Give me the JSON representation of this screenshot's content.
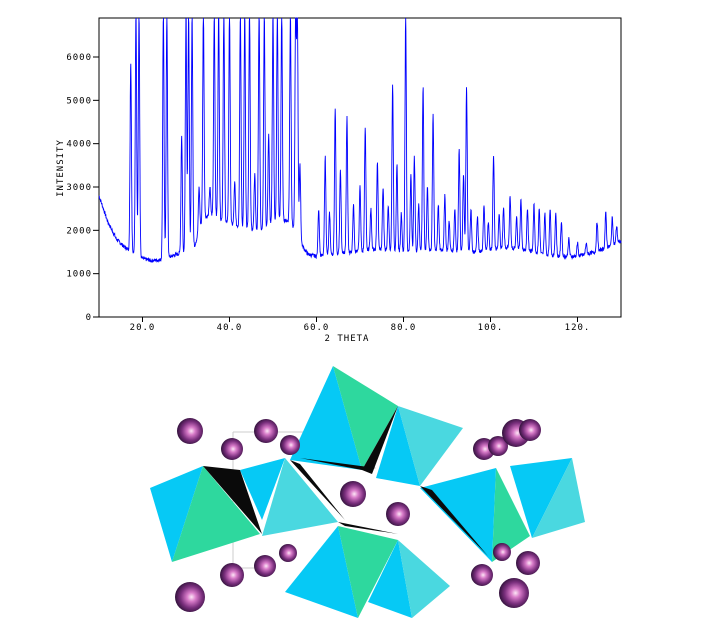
{
  "chart_data": {
    "type": "line",
    "xlabel": "2 THETA",
    "ylabel": "INTENSITY",
    "xlim": [
      10,
      130
    ],
    "ylim": [
      0,
      6900
    ],
    "x_ticks": [
      20,
      40,
      60,
      80,
      100,
      120
    ],
    "x_tick_labels": [
      "20.0",
      "40.0",
      "60.0",
      "80.0",
      "100.",
      "120."
    ],
    "y_ticks": [
      0,
      1000,
      2000,
      3000,
      4000,
      5000,
      6000
    ],
    "y_tick_labels": [
      "0",
      "1000",
      "2000",
      "3000",
      "4000",
      "5000",
      "6000"
    ],
    "line_color": "#0000ff",
    "series": [
      {
        "background": [
          [
            10,
            2800
          ],
          [
            12,
            2200
          ],
          [
            14,
            1800
          ],
          [
            16,
            1600
          ],
          [
            18,
            1500
          ],
          [
            20,
            1350
          ],
          [
            22,
            1300
          ],
          [
            24,
            1320
          ],
          [
            26,
            1380
          ],
          [
            28,
            1450
          ],
          [
            30,
            1500
          ],
          [
            32,
            1650
          ],
          [
            34,
            2300
          ],
          [
            36,
            2350
          ],
          [
            38,
            2250
          ],
          [
            40,
            2150
          ],
          [
            42,
            2100
          ],
          [
            44,
            2050
          ],
          [
            46,
            2000
          ],
          [
            48,
            2050
          ],
          [
            50,
            2150
          ],
          [
            52,
            2250
          ],
          [
            54,
            2200
          ],
          [
            56,
            1800
          ],
          [
            57,
            1600
          ],
          [
            58,
            1450
          ],
          [
            60,
            1400
          ],
          [
            64,
            1450
          ],
          [
            68,
            1500
          ],
          [
            72,
            1550
          ],
          [
            76,
            1550
          ],
          [
            80,
            1500
          ],
          [
            84,
            1520
          ],
          [
            88,
            1550
          ],
          [
            92,
            1520
          ],
          [
            96,
            1500
          ],
          [
            100,
            1550
          ],
          [
            104,
            1600
          ],
          [
            108,
            1550
          ],
          [
            112,
            1450
          ],
          [
            116,
            1400
          ],
          [
            120,
            1400
          ],
          [
            124,
            1500
          ],
          [
            128,
            1650
          ],
          [
            130,
            1750
          ]
        ],
        "peaks": [
          [
            17.3,
            5900
          ],
          [
            18.5,
            7000
          ],
          [
            19.2,
            7000
          ],
          [
            24.8,
            7000
          ],
          [
            25.6,
            7000
          ],
          [
            29,
            4200
          ],
          [
            30,
            7000
          ],
          [
            30.6,
            7000
          ],
          [
            31.4,
            7000
          ],
          [
            33,
            3000
          ],
          [
            34,
            7000
          ],
          [
            35.5,
            3000
          ],
          [
            36.5,
            7000
          ],
          [
            37.5,
            7000
          ],
          [
            38.7,
            7000
          ],
          [
            40,
            7000
          ],
          [
            41.2,
            3100
          ],
          [
            42.5,
            7000
          ],
          [
            43.5,
            7000
          ],
          [
            44.6,
            7000
          ],
          [
            45.8,
            3300
          ],
          [
            46.8,
            7000
          ],
          [
            48,
            7000
          ],
          [
            49,
            4200
          ],
          [
            50,
            7000
          ],
          [
            51,
            7000
          ],
          [
            52,
            7000
          ],
          [
            54,
            7000
          ],
          [
            55.2,
            7000
          ],
          [
            55.6,
            7000
          ],
          [
            56.2,
            3500
          ],
          [
            60.5,
            2500
          ],
          [
            62,
            3700
          ],
          [
            63,
            2400
          ],
          [
            64.3,
            4800
          ],
          [
            65.5,
            3400
          ],
          [
            67,
            4600
          ],
          [
            68.5,
            2600
          ],
          [
            70,
            3000
          ],
          [
            71.2,
            4400
          ],
          [
            72.5,
            2500
          ],
          [
            74,
            3600
          ],
          [
            75.3,
            3000
          ],
          [
            76.5,
            2600
          ],
          [
            77.5,
            5400
          ],
          [
            78.5,
            3500
          ],
          [
            79.5,
            2400
          ],
          [
            80.5,
            7000
          ],
          [
            81.7,
            3300
          ],
          [
            82.5,
            3700
          ],
          [
            83.5,
            2600
          ],
          [
            84.5,
            5300
          ],
          [
            85.5,
            3000
          ],
          [
            86.8,
            4700
          ],
          [
            88,
            2600
          ],
          [
            89.5,
            2800
          ],
          [
            90.5,
            2200
          ],
          [
            91.8,
            2500
          ],
          [
            92.8,
            3900
          ],
          [
            93.8,
            3300
          ],
          [
            94.5,
            5300
          ],
          [
            95.5,
            2500
          ],
          [
            97,
            2300
          ],
          [
            98.5,
            2600
          ],
          [
            99.5,
            2200
          ],
          [
            100.7,
            3700
          ],
          [
            102,
            2400
          ],
          [
            103,
            2500
          ],
          [
            104.5,
            2800
          ],
          [
            106,
            2300
          ],
          [
            107,
            2700
          ],
          [
            108.5,
            2500
          ],
          [
            110,
            2600
          ],
          [
            111.2,
            2500
          ],
          [
            112.5,
            2400
          ],
          [
            113.7,
            2500
          ],
          [
            115,
            2400
          ],
          [
            116.3,
            2200
          ],
          [
            118,
            1800
          ],
          [
            120,
            1700
          ],
          [
            122,
            1700
          ],
          [
            124.5,
            2200
          ],
          [
            126.5,
            2400
          ],
          [
            128,
            2300
          ],
          [
            129,
            2100
          ]
        ]
      }
    ]
  },
  "structure": {
    "colors": {
      "tetra_blue": "#06c9f5",
      "tetra_green": "#2ed89e",
      "tetra_cyan": "#4ad8e0",
      "edge_black": "#0a0a0a",
      "atom_dark": "#3a1848",
      "atom_mid": "#a14a9e",
      "atom_highlight": "#f5b8e6"
    }
  }
}
